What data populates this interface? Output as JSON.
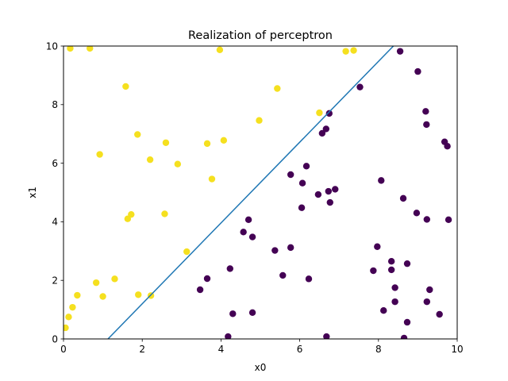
{
  "chart_data": {
    "type": "scatter",
    "title": "Realization of perceptron",
    "xlabel": "x0",
    "ylabel": "x1",
    "xlim": [
      0,
      10
    ],
    "ylim": [
      0,
      10
    ],
    "xticks": [
      0,
      2,
      4,
      6,
      8,
      10
    ],
    "yticks": [
      0,
      2,
      4,
      6,
      8,
      10
    ],
    "grid": false,
    "legend": "none",
    "class_colors": {
      "1": "#f5e01f",
      "0": "#440154"
    },
    "line_color": "#1f77b4",
    "series": [
      {
        "class": 1,
        "points": [
          [
            0.17,
            9.92
          ],
          [
            0.67,
            9.92
          ],
          [
            3.97,
            9.87
          ],
          [
            7.17,
            9.82
          ],
          [
            7.37,
            9.85
          ],
          [
            1.58,
            8.62
          ],
          [
            5.43,
            8.55
          ],
          [
            6.5,
            7.72
          ],
          [
            4.97,
            7.46
          ],
          [
            1.88,
            6.98
          ],
          [
            2.6,
            6.7
          ],
          [
            3.65,
            6.67
          ],
          [
            4.07,
            6.78
          ],
          [
            0.92,
            6.3
          ],
          [
            2.2,
            6.12
          ],
          [
            2.9,
            5.97
          ],
          [
            3.77,
            5.46
          ],
          [
            2.57,
            4.27
          ],
          [
            1.72,
            4.25
          ],
          [
            1.63,
            4.1
          ],
          [
            3.13,
            2.98
          ],
          [
            1.3,
            2.05
          ],
          [
            0.83,
            1.92
          ],
          [
            0.35,
            1.49
          ],
          [
            1.0,
            1.45
          ],
          [
            1.9,
            1.51
          ],
          [
            2.22,
            1.48
          ],
          [
            0.23,
            1.08
          ],
          [
            0.13,
            0.75
          ],
          [
            0.05,
            0.38
          ]
        ]
      },
      {
        "class": 0,
        "points": [
          [
            8.55,
            9.82
          ],
          [
            9.0,
            9.13
          ],
          [
            7.53,
            8.6
          ],
          [
            9.2,
            7.77
          ],
          [
            6.75,
            7.7
          ],
          [
            9.22,
            7.32
          ],
          [
            6.67,
            7.17
          ],
          [
            6.57,
            7.02
          ],
          [
            9.68,
            6.73
          ],
          [
            9.75,
            6.58
          ],
          [
            6.17,
            5.9
          ],
          [
            5.77,
            5.61
          ],
          [
            6.07,
            5.32
          ],
          [
            8.07,
            5.41
          ],
          [
            6.9,
            5.11
          ],
          [
            6.73,
            5.04
          ],
          [
            6.47,
            4.93
          ],
          [
            8.63,
            4.8
          ],
          [
            6.77,
            4.66
          ],
          [
            6.05,
            4.48
          ],
          [
            8.97,
            4.3
          ],
          [
            4.7,
            4.07
          ],
          [
            9.23,
            4.08
          ],
          [
            9.78,
            4.07
          ],
          [
            4.57,
            3.65
          ],
          [
            4.8,
            3.48
          ],
          [
            7.97,
            3.15
          ],
          [
            5.77,
            3.12
          ],
          [
            5.37,
            3.02
          ],
          [
            8.33,
            2.65
          ],
          [
            8.73,
            2.57
          ],
          [
            7.87,
            2.33
          ],
          [
            8.33,
            2.36
          ],
          [
            4.23,
            2.4
          ],
          [
            5.57,
            2.17
          ],
          [
            3.65,
            2.06
          ],
          [
            6.23,
            2.05
          ],
          [
            8.42,
            1.75
          ],
          [
            9.3,
            1.68
          ],
          [
            3.47,
            1.68
          ],
          [
            8.42,
            1.27
          ],
          [
            9.23,
            1.27
          ],
          [
            8.13,
            0.97
          ],
          [
            4.8,
            0.9
          ],
          [
            4.3,
            0.86
          ],
          [
            9.55,
            0.84
          ],
          [
            8.73,
            0.57
          ],
          [
            4.18,
            0.08
          ],
          [
            6.68,
            0.08
          ],
          [
            8.65,
            0.03
          ]
        ]
      }
    ],
    "decision_line": {
      "x": [
        1.13,
        8.38
      ],
      "y": [
        0,
        10
      ]
    }
  }
}
